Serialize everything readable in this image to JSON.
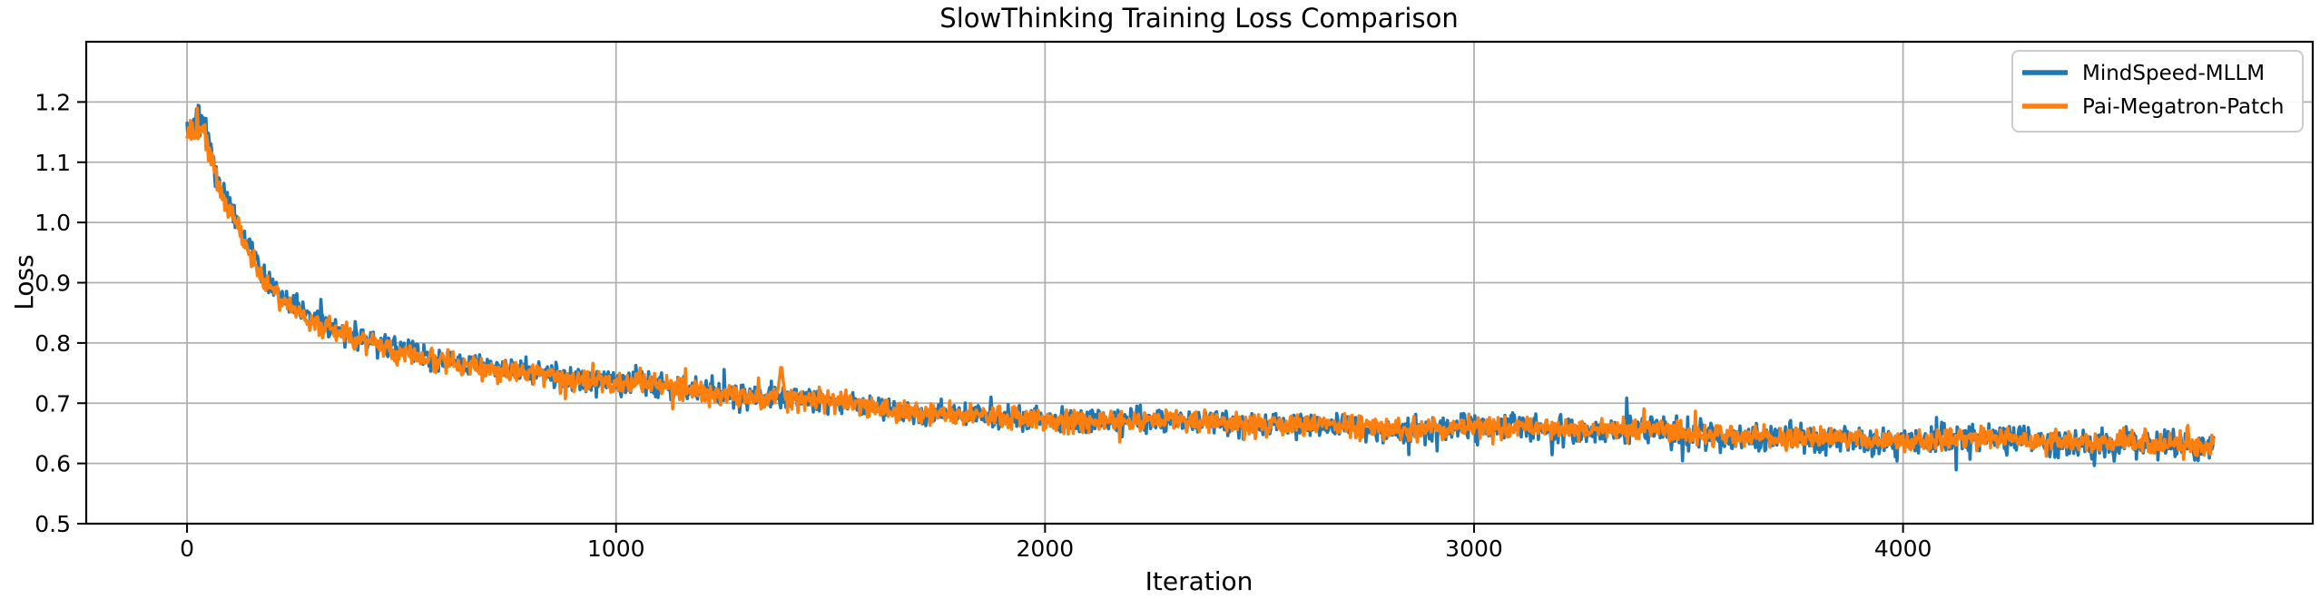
{
  "chart_data": {
    "type": "line",
    "title": "SlowThinking Training Loss Comparison",
    "xlabel": "Iteration",
    "ylabel": "Loss",
    "xlim": [
      -235,
      4955
    ],
    "ylim": [
      0.5,
      1.3
    ],
    "xticks": [
      0,
      1000,
      2000,
      3000,
      4000
    ],
    "yticks": [
      0.5,
      0.6,
      0.7,
      0.8,
      0.9,
      1.0,
      1.1,
      1.2
    ],
    "grid": true,
    "grid_color": "#b0b0b0",
    "legend_position": "upper right",
    "iteration_range": [
      0,
      4724
    ],
    "series": [
      {
        "name": "MindSpeed-MLLM",
        "color": "#1f77b4",
        "noise": {
          "early": 0.028,
          "base": 0.021,
          "late": 0.024,
          "down_spikes_after": 2800
        },
        "trend": [
          [
            0,
            1.155
          ],
          [
            10,
            1.165
          ],
          [
            25,
            1.175
          ],
          [
            40,
            1.162
          ],
          [
            55,
            1.125
          ],
          [
            70,
            1.08
          ],
          [
            90,
            1.04
          ],
          [
            115,
            1.008
          ],
          [
            150,
            0.952
          ],
          [
            185,
            0.906
          ],
          [
            230,
            0.87
          ],
          [
            280,
            0.843
          ],
          [
            340,
            0.82
          ],
          [
            400,
            0.806
          ],
          [
            500,
            0.79
          ],
          [
            600,
            0.774
          ],
          [
            700,
            0.762
          ],
          [
            800,
            0.753
          ],
          [
            900,
            0.743
          ],
          [
            1000,
            0.733
          ],
          [
            1100,
            0.724
          ],
          [
            1200,
            0.715
          ],
          [
            1300,
            0.71
          ],
          [
            1400,
            0.705
          ],
          [
            1500,
            0.701
          ],
          [
            1600,
            0.697
          ],
          [
            1700,
            0.691
          ],
          [
            1800,
            0.685
          ],
          [
            1900,
            0.68
          ],
          [
            2000,
            0.675
          ],
          [
            2200,
            0.67
          ],
          [
            2400,
            0.667
          ],
          [
            2600,
            0.664
          ],
          [
            2800,
            0.66
          ],
          [
            3000,
            0.657
          ],
          [
            3200,
            0.653
          ],
          [
            3400,
            0.65
          ],
          [
            3600,
            0.647
          ],
          [
            3800,
            0.644
          ],
          [
            4000,
            0.641
          ],
          [
            4200,
            0.639
          ],
          [
            4400,
            0.636
          ],
          [
            4600,
            0.633
          ],
          [
            4724,
            0.631
          ]
        ]
      },
      {
        "name": "Pai-Megatron-Patch",
        "color": "#ff7f0e",
        "noise": {
          "early": 0.027,
          "base": 0.019,
          "late": 0.019
        },
        "spike": {
          "x": 1385,
          "peak": 0.765,
          "width": 10
        },
        "trend": [
          [
            0,
            1.15
          ],
          [
            10,
            1.155
          ],
          [
            25,
            1.165
          ],
          [
            40,
            1.15
          ],
          [
            55,
            1.115
          ],
          [
            70,
            1.07
          ],
          [
            90,
            1.03
          ],
          [
            115,
            1.0
          ],
          [
            150,
            0.945
          ],
          [
            185,
            0.9
          ],
          [
            230,
            0.865
          ],
          [
            280,
            0.838
          ],
          [
            340,
            0.816
          ],
          [
            400,
            0.802
          ],
          [
            500,
            0.787
          ],
          [
            600,
            0.771
          ],
          [
            700,
            0.759
          ],
          [
            800,
            0.75
          ],
          [
            900,
            0.741
          ],
          [
            1000,
            0.732
          ],
          [
            1100,
            0.723
          ],
          [
            1200,
            0.715
          ],
          [
            1300,
            0.71
          ],
          [
            1400,
            0.706
          ],
          [
            1500,
            0.702
          ],
          [
            1600,
            0.697
          ],
          [
            1700,
            0.691
          ],
          [
            1800,
            0.685
          ],
          [
            1900,
            0.68
          ],
          [
            2000,
            0.676
          ],
          [
            2200,
            0.671
          ],
          [
            2400,
            0.668
          ],
          [
            2600,
            0.665
          ],
          [
            2800,
            0.661
          ],
          [
            3000,
            0.658
          ],
          [
            3200,
            0.654
          ],
          [
            3400,
            0.651
          ],
          [
            3600,
            0.648
          ],
          [
            3800,
            0.645
          ],
          [
            4000,
            0.642
          ],
          [
            4200,
            0.64
          ],
          [
            4400,
            0.637
          ],
          [
            4600,
            0.634
          ],
          [
            4724,
            0.632
          ]
        ]
      }
    ]
  }
}
